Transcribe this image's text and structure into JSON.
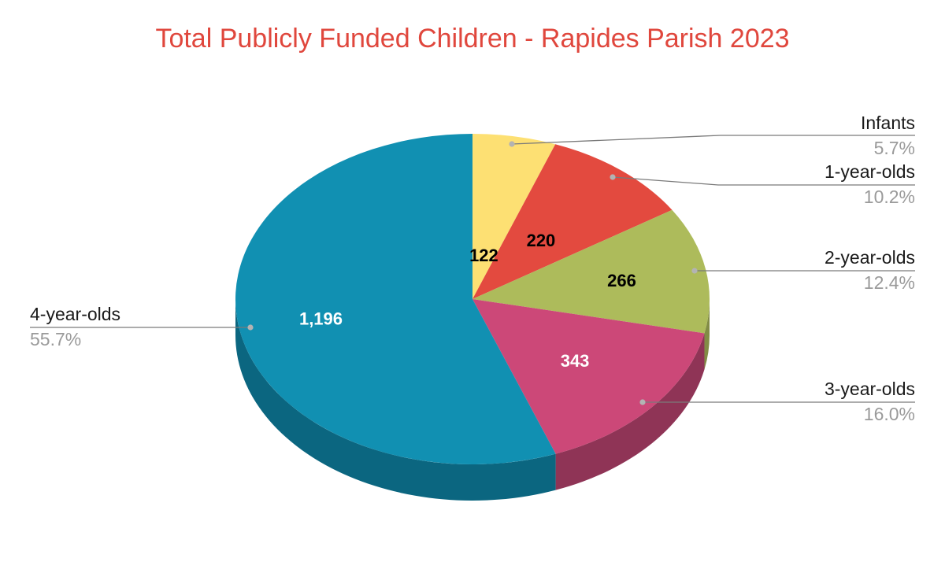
{
  "chart_data": {
    "type": "pie",
    "title": "Total Publicly Funded Children - Rapides Parish 2023",
    "slices": [
      {
        "label": "Infants",
        "value": 122,
        "value_label": "122",
        "percent_label": "5.7%",
        "color": "#fde073",
        "side_color": "#c9b35c",
        "text_color": "#000000"
      },
      {
        "label": "1-year-olds",
        "value": 220,
        "value_label": "220",
        "percent_label": "10.2%",
        "color": "#e34a3f",
        "side_color": "#a83a32",
        "text_color": "#000000"
      },
      {
        "label": "2-year-olds",
        "value": 266,
        "value_label": "266",
        "percent_label": "12.4%",
        "color": "#adbb5b",
        "side_color": "#828c45",
        "text_color": "#000000"
      },
      {
        "label": "3-year-olds",
        "value": 343,
        "value_label": "343",
        "percent_label": "16.0%",
        "color": "#cc4878",
        "side_color": "#8f3456",
        "text_color": "#ffffff"
      },
      {
        "label": "4-year-olds",
        "value": 1196,
        "value_label": "1,196",
        "percent_label": "55.7%",
        "color": "#1190b2",
        "side_color": "#0b6680",
        "text_color": "#ffffff"
      }
    ],
    "legend": "callouts",
    "three_d": true
  }
}
